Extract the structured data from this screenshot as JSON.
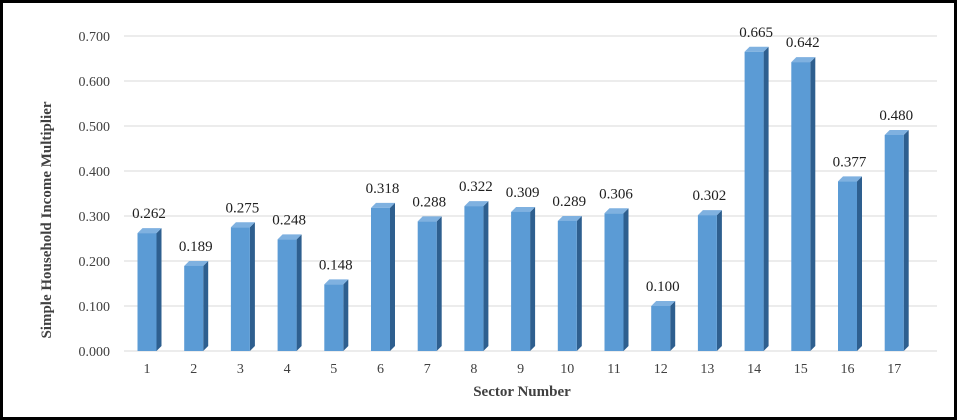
{
  "chart_data": {
    "type": "bar",
    "categories": [
      "1",
      "2",
      "3",
      "4",
      "5",
      "6",
      "7",
      "8",
      "9",
      "10",
      "11",
      "12",
      "13",
      "14",
      "15",
      "16",
      "17"
    ],
    "values": [
      0.262,
      0.189,
      0.275,
      0.248,
      0.148,
      0.318,
      0.288,
      0.322,
      0.309,
      0.289,
      0.306,
      0.1,
      0.302,
      0.665,
      0.642,
      0.377,
      0.48
    ],
    "data_labels": [
      "0.262",
      "0.189",
      "0.275",
      "0.248",
      "0.148",
      "0.318",
      "0.288",
      "0.322",
      "0.309",
      "0.289",
      "0.306",
      "0.100",
      "0.302",
      "0.665",
      "0.642",
      "0.377",
      "0.480"
    ],
    "y_ticks": [
      "0.000",
      "0.100",
      "0.200",
      "0.300",
      "0.400",
      "0.500",
      "0.600",
      "0.700"
    ],
    "xlabel": "Sector Number",
    "ylabel": "Simple Household Income Multiplier",
    "ylim": [
      0,
      0.7
    ],
    "grid": true,
    "legend": "none",
    "colors": {
      "bar_front": "#5b9bd5",
      "bar_side": "#2e5f8f",
      "bar_top": "#7fb1e0"
    }
  }
}
